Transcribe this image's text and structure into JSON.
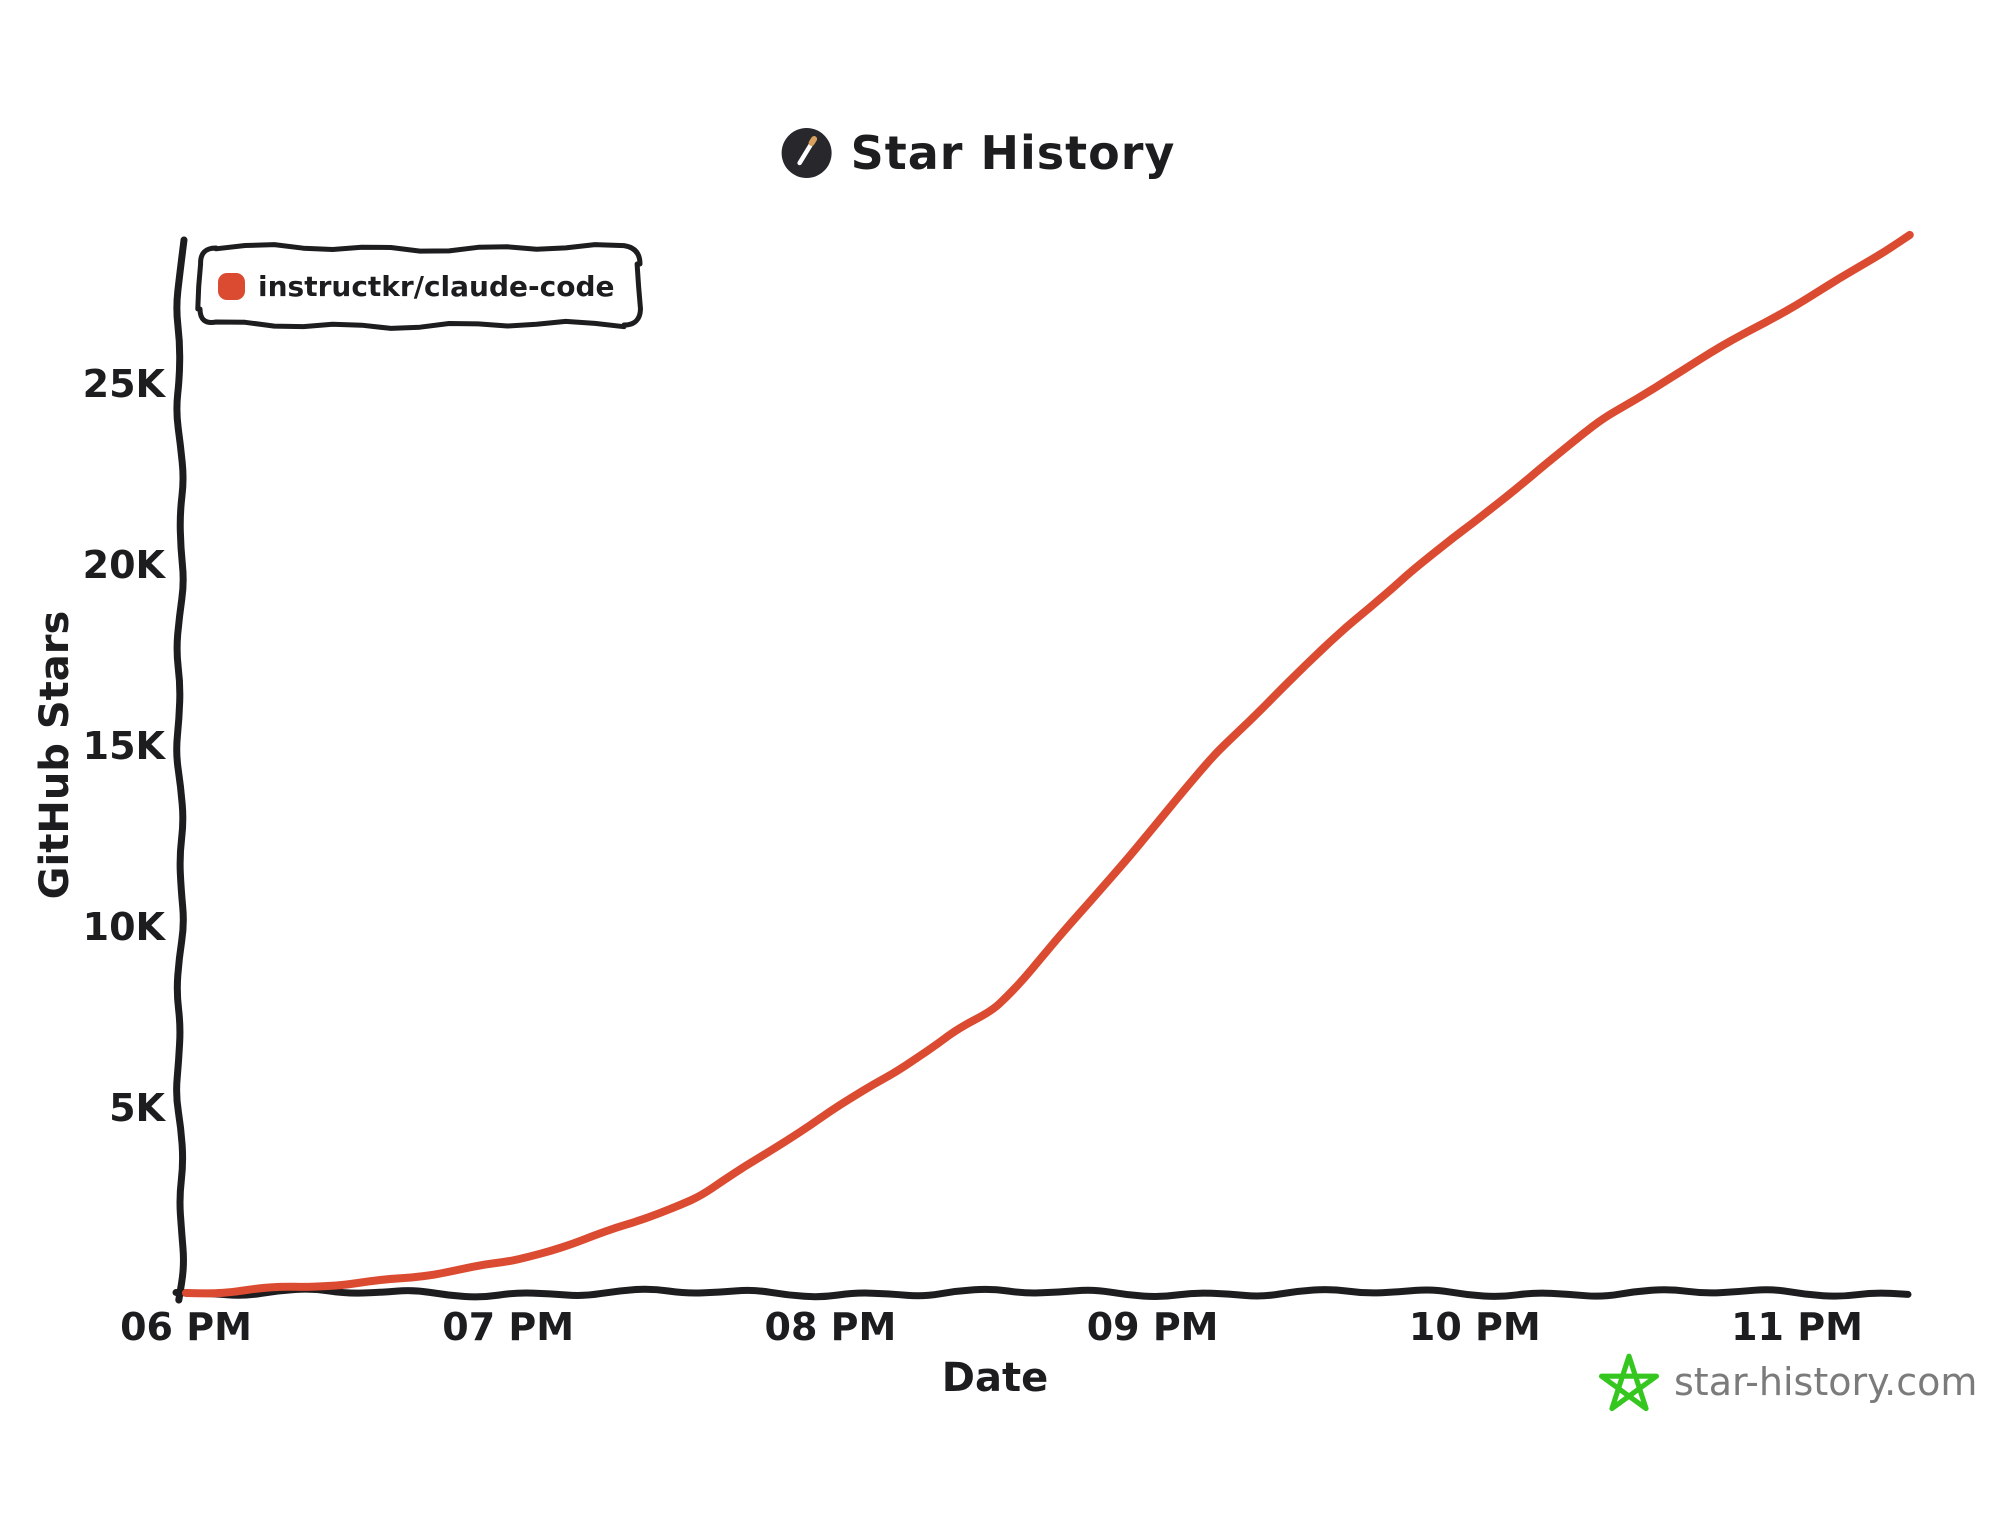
{
  "header": {
    "title": "Star History"
  },
  "legend": {
    "label": "instructkr/claude-code",
    "swatch_color": "#db4b31"
  },
  "watermark": {
    "text": "star-history.com"
  },
  "colors": {
    "ink": "#1d1d1f",
    "series_red": "#db4b31",
    "logo_bg": "#28282c",
    "logo_match_tip": "#d8a05e",
    "star_green": "#35c71f",
    "watermark_gray": "#7b7b7b"
  },
  "chart_data": {
    "type": "line",
    "title": "Star History",
    "xlabel": "Date",
    "ylabel": "GitHub Stars",
    "legend_position": "top-left",
    "grid": false,
    "ylim": [
      0,
      29500
    ],
    "x_range_hours": [
      18,
      23.35
    ],
    "y_ticks": [
      {
        "label": "5K",
        "value": 5000
      },
      {
        "label": "10K",
        "value": 10000
      },
      {
        "label": "15K",
        "value": 15000
      },
      {
        "label": "20K",
        "value": 20000
      },
      {
        "label": "25K",
        "value": 25000
      }
    ],
    "x_ticks": [
      {
        "label": "06 PM",
        "hour": 18
      },
      {
        "label": "07 PM",
        "hour": 19
      },
      {
        "label": "08 PM",
        "hour": 20
      },
      {
        "label": "09 PM",
        "hour": 21
      },
      {
        "label": "10 PM",
        "hour": 22
      },
      {
        "label": "11 PM",
        "hour": 23
      }
    ],
    "series": [
      {
        "name": "instructkr/claude-code",
        "color": "#db4b31",
        "points_hour_stars": [
          [
            18.0,
            0
          ],
          [
            18.15,
            60
          ],
          [
            18.3,
            130
          ],
          [
            18.5,
            260
          ],
          [
            18.7,
            430
          ],
          [
            18.85,
            620
          ],
          [
            19.0,
            900
          ],
          [
            19.2,
            1350
          ],
          [
            19.4,
            1950
          ],
          [
            19.6,
            2750
          ],
          [
            19.8,
            3800
          ],
          [
            20.0,
            5050
          ],
          [
            20.2,
            6100
          ],
          [
            20.4,
            7300
          ],
          [
            20.5,
            7800
          ],
          [
            20.6,
            8700
          ],
          [
            20.8,
            10700
          ],
          [
            21.0,
            12900
          ],
          [
            21.2,
            14900
          ],
          [
            21.4,
            16700
          ],
          [
            21.6,
            18400
          ],
          [
            21.8,
            19900
          ],
          [
            22.0,
            21300
          ],
          [
            22.2,
            22800
          ],
          [
            22.4,
            24100
          ],
          [
            22.6,
            25300
          ],
          [
            22.8,
            26300
          ],
          [
            23.0,
            27300
          ],
          [
            23.2,
            28400
          ],
          [
            23.35,
            29200
          ]
        ]
      }
    ]
  }
}
